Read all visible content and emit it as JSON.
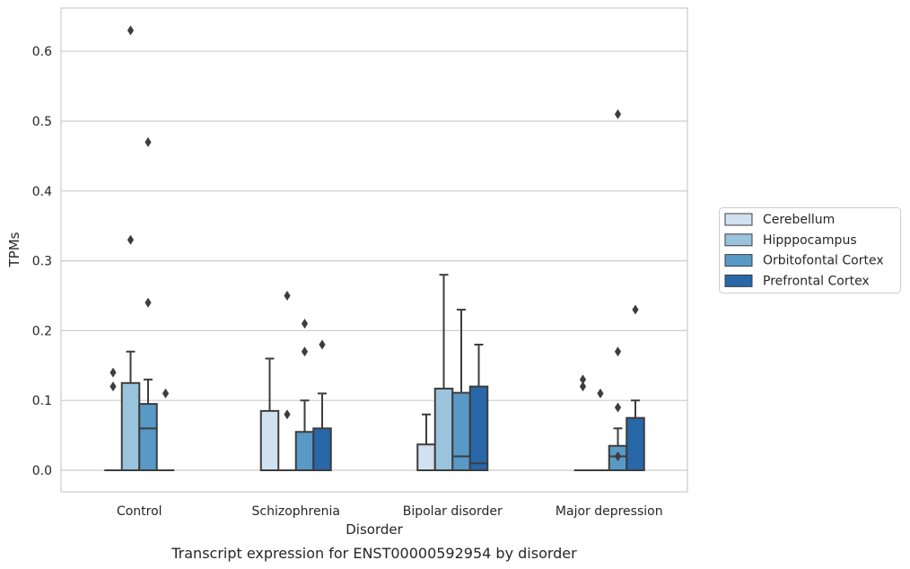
{
  "chart_data": {
    "type": "box",
    "title": "",
    "caption": "Transcript expression for ENST00000592954 by disorder",
    "xlabel": "Disorder",
    "ylabel": "TPMs",
    "ylim": [
      -0.03,
      0.66
    ],
    "yticks": [
      0.0,
      0.1,
      0.2,
      0.3,
      0.4,
      0.5,
      0.6
    ],
    "ytick_labels": [
      "0.0",
      "0.1",
      "0.2",
      "0.3",
      "0.4",
      "0.5",
      "0.6"
    ],
    "grid": "horizontal",
    "legend_position": "right",
    "categories": [
      "Control",
      "Schizophrenia",
      "Bipolar disorder",
      "Major depression"
    ],
    "series": [
      {
        "name": "Cerebellum",
        "color": "#d1e1f0",
        "boxes": [
          {
            "q1": 0,
            "median": 0,
            "q3": 0,
            "whisker_low": 0,
            "whisker_high": 0,
            "outliers": [
              0.12,
              0.14
            ]
          },
          {
            "q1": 0,
            "median": 0,
            "q3": 0.085,
            "whisker_low": 0,
            "whisker_high": 0.16,
            "outliers": []
          },
          {
            "q1": 0,
            "median": 0,
            "q3": 0.037,
            "whisker_low": 0,
            "whisker_high": 0.08,
            "outliers": []
          },
          {
            "q1": 0,
            "median": 0,
            "q3": 0,
            "whisker_low": 0,
            "whisker_high": 0,
            "outliers": [
              0.12,
              0.13
            ]
          }
        ]
      },
      {
        "name": "Hipppocampus",
        "color": "#9ac3de",
        "boxes": [
          {
            "q1": 0,
            "median": 0,
            "q3": 0.125,
            "whisker_low": 0,
            "whisker_high": 0.17,
            "outliers": [
              0.33,
              0.63
            ]
          },
          {
            "q1": 0,
            "median": 0,
            "q3": 0,
            "whisker_low": 0,
            "whisker_high": 0,
            "outliers": [
              0.08,
              0.25
            ]
          },
          {
            "q1": 0,
            "median": 0,
            "q3": 0.117,
            "whisker_low": 0,
            "whisker_high": 0.28,
            "outliers": []
          },
          {
            "q1": 0,
            "median": 0,
            "q3": 0,
            "whisker_low": 0,
            "whisker_high": 0,
            "outliers": [
              0.11
            ]
          }
        ]
      },
      {
        "name": "Orbitofontal Cortex",
        "color": "#5899c6",
        "boxes": [
          {
            "q1": 0,
            "median": 0.06,
            "q3": 0.095,
            "whisker_low": 0,
            "whisker_high": 0.13,
            "outliers": [
              0.24,
              0.47
            ]
          },
          {
            "q1": 0,
            "median": 0,
            "q3": 0.055,
            "whisker_low": 0,
            "whisker_high": 0.1,
            "outliers": [
              0.17,
              0.21
            ]
          },
          {
            "q1": 0,
            "median": 0.02,
            "q3": 0.111,
            "whisker_low": 0,
            "whisker_high": 0.23,
            "outliers": []
          },
          {
            "q1": 0,
            "median": 0.02,
            "q3": 0.035,
            "whisker_low": 0,
            "whisker_high": 0.06,
            "outliers": [
              0.02,
              0.09,
              0.17,
              0.51
            ]
          }
        ]
      },
      {
        "name": "Prefrontal Cortex",
        "color": "#2867a8",
        "boxes": [
          {
            "q1": 0,
            "median": 0,
            "q3": 0,
            "whisker_low": 0,
            "whisker_high": 0,
            "outliers": [
              0.11
            ]
          },
          {
            "q1": 0,
            "median": 0,
            "q3": 0.06,
            "whisker_low": 0,
            "whisker_high": 0.11,
            "outliers": [
              0.18
            ]
          },
          {
            "q1": 0,
            "median": 0.01,
            "q3": 0.12,
            "whisker_low": 0,
            "whisker_high": 0.18,
            "outliers": []
          },
          {
            "q1": 0,
            "median": 0,
            "q3": 0.075,
            "whisker_low": 0,
            "whisker_high": 0.1,
            "outliers": [
              0.23
            ]
          }
        ]
      }
    ]
  }
}
